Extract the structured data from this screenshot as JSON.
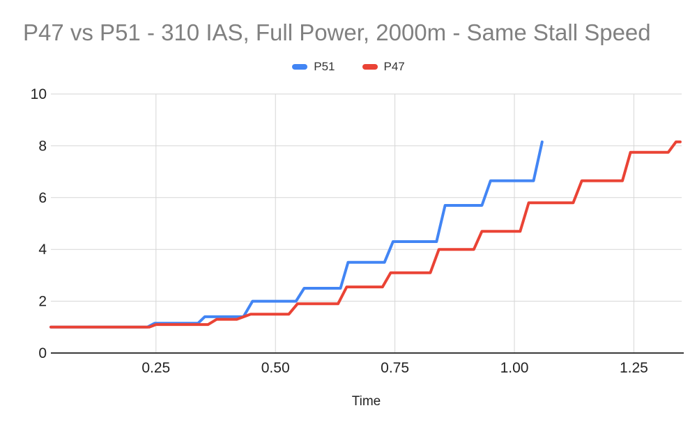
{
  "title": "P47 vs P51 - 310 IAS, Full Power, 2000m - Same Stall Speed",
  "legend": {
    "items": [
      {
        "label": "P51",
        "color": "#4285F4"
      },
      {
        "label": "P47",
        "color": "#EA4335"
      }
    ]
  },
  "colors": {
    "title_text": "#808080",
    "axis_text": "#222222",
    "legend_text": "#333333",
    "gridline": "#d6d6d6",
    "axis_line": "#3a3a3a",
    "background": "#ffffff"
  },
  "chart_data": {
    "type": "line",
    "step_style": true,
    "title": "P47 vs P51 - 310 IAS, Full Power, 2000m - Same Stall Speed",
    "xlabel": "Time",
    "ylabel": "",
    "xlim": [
      0.03,
      1.35
    ],
    "ylim": [
      0,
      10
    ],
    "grid": true,
    "legend_position": "top",
    "x_ticks": {
      "values": [
        0.25,
        0.5,
        0.75,
        1.0,
        1.25
      ],
      "labels": [
        "0.25",
        "0.50",
        "0.75",
        "1.00",
        "1.25"
      ]
    },
    "y_ticks": {
      "values": [
        0,
        2,
        4,
        6,
        8,
        10
      ],
      "labels": [
        "0",
        "2",
        "4",
        "6",
        "8",
        "10"
      ]
    },
    "series": [
      {
        "name": "P51",
        "color": "#4285F4",
        "points": [
          [
            0.03,
            1.0
          ],
          [
            0.232,
            1.0
          ],
          [
            0.247,
            1.15
          ],
          [
            0.338,
            1.15
          ],
          [
            0.352,
            1.4
          ],
          [
            0.433,
            1.4
          ],
          [
            0.452,
            2.0
          ],
          [
            0.543,
            2.0
          ],
          [
            0.56,
            2.5
          ],
          [
            0.636,
            2.5
          ],
          [
            0.652,
            3.5
          ],
          [
            0.728,
            3.5
          ],
          [
            0.746,
            4.3
          ],
          [
            0.837,
            4.3
          ],
          [
            0.855,
            5.7
          ],
          [
            0.932,
            5.7
          ],
          [
            0.95,
            6.65
          ],
          [
            1.04,
            6.65
          ],
          [
            1.058,
            8.15
          ]
        ]
      },
      {
        "name": "P47",
        "color": "#EA4335",
        "points": [
          [
            0.03,
            1.0
          ],
          [
            0.236,
            1.0
          ],
          [
            0.25,
            1.1
          ],
          [
            0.359,
            1.1
          ],
          [
            0.377,
            1.3
          ],
          [
            0.419,
            1.3
          ],
          [
            0.448,
            1.5
          ],
          [
            0.528,
            1.5
          ],
          [
            0.546,
            1.9
          ],
          [
            0.631,
            1.9
          ],
          [
            0.649,
            2.55
          ],
          [
            0.724,
            2.55
          ],
          [
            0.741,
            3.1
          ],
          [
            0.824,
            3.1
          ],
          [
            0.842,
            4.0
          ],
          [
            0.915,
            4.0
          ],
          [
            0.932,
            4.7
          ],
          [
            1.012,
            4.7
          ],
          [
            1.03,
            5.8
          ],
          [
            1.123,
            5.8
          ],
          [
            1.141,
            6.65
          ],
          [
            1.226,
            6.65
          ],
          [
            1.243,
            7.75
          ],
          [
            1.322,
            7.75
          ],
          [
            1.338,
            8.15
          ],
          [
            1.347,
            8.15
          ]
        ]
      }
    ]
  }
}
